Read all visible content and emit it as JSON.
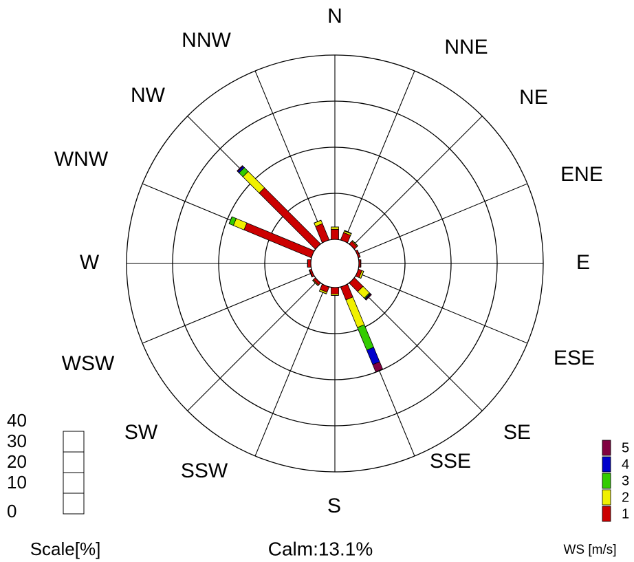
{
  "chart_data": {
    "type": "windrose",
    "categories": [
      "N",
      "NNE",
      "NE",
      "ENE",
      "E",
      "ESE",
      "SE",
      "SSE",
      "S",
      "SSW",
      "SW",
      "WSW",
      "W",
      "WNW",
      "NW",
      "NNW"
    ],
    "series": [
      {
        "name": "1",
        "color": "#cc0000",
        "values": [
          2.2,
          1.7,
          0.8,
          0.4,
          0.4,
          0.8,
          2.6,
          3.0,
          1.4,
          1.2,
          0.6,
          0.4,
          0.7,
          15.8,
          17.2,
          3.8
        ]
      },
      {
        "name": "2",
        "color": "#f0f000",
        "values": [
          0.5,
          0.4,
          0.2,
          0,
          0,
          0.4,
          2.0,
          6.5,
          0.3,
          0.4,
          0.2,
          0.1,
          0,
          2.5,
          5.0,
          0.8
        ]
      },
      {
        "name": "3",
        "color": "#33cc00",
        "values": [
          0,
          0.1,
          0,
          0,
          0,
          0,
          0.2,
          5.3,
          0,
          0,
          0,
          0,
          0,
          1.0,
          1.2,
          0
        ]
      },
      {
        "name": "4",
        "color": "#0000cc",
        "values": [
          0,
          0,
          0,
          0,
          0,
          0,
          0.2,
          3.4,
          0,
          0,
          0,
          0,
          0,
          0,
          0.4,
          0
        ]
      },
      {
        "name": "5",
        "color": "#800040",
        "values": [
          0,
          0,
          0,
          0,
          0,
          0,
          0.2,
          1.7,
          0,
          0,
          0,
          0,
          0,
          0,
          0.2,
          0
        ]
      }
    ],
    "rlim": [
      0,
      40
    ],
    "rticks": [
      0,
      10,
      20,
      30,
      40
    ],
    "scale_label": "Scale[%]",
    "calm_label": "Calm:13.1%",
    "legend_title": "WS [m/s]"
  }
}
